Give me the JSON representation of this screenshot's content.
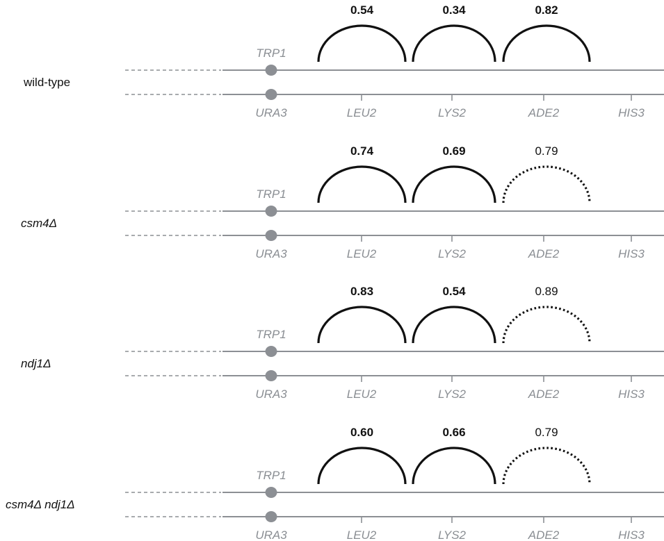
{
  "genes": {
    "centromere_top": "TRP1",
    "bottom": [
      "URA3",
      "LEU2",
      "LYS2",
      "ADE2",
      "HIS3"
    ]
  },
  "rows": [
    {
      "label": "wild-type",
      "label_italic": false,
      "intervals": [
        {
          "value": "0.54",
          "bold": true,
          "dotted": false
        },
        {
          "value": "0.34",
          "bold": true,
          "dotted": false
        },
        {
          "value": "0.82",
          "bold": true,
          "dotted": false
        }
      ]
    },
    {
      "label": "csm4Δ",
      "label_italic": true,
      "intervals": [
        {
          "value": "0.74",
          "bold": true,
          "dotted": false
        },
        {
          "value": "0.69",
          "bold": true,
          "dotted": false
        },
        {
          "value": "0.79",
          "bold": false,
          "dotted": true
        }
      ]
    },
    {
      "label": "ndj1Δ",
      "label_italic": true,
      "intervals": [
        {
          "value": "0.83",
          "bold": true,
          "dotted": false
        },
        {
          "value": "0.54",
          "bold": true,
          "dotted": false
        },
        {
          "value": "0.89",
          "bold": false,
          "dotted": true
        }
      ]
    },
    {
      "label": "csm4Δ ndj1Δ",
      "label_italic": true,
      "intervals": [
        {
          "value": "0.60",
          "bold": true,
          "dotted": false
        },
        {
          "value": "0.66",
          "bold": true,
          "dotted": false
        },
        {
          "value": "0.79",
          "bold": false,
          "dotted": true
        }
      ]
    }
  ]
}
